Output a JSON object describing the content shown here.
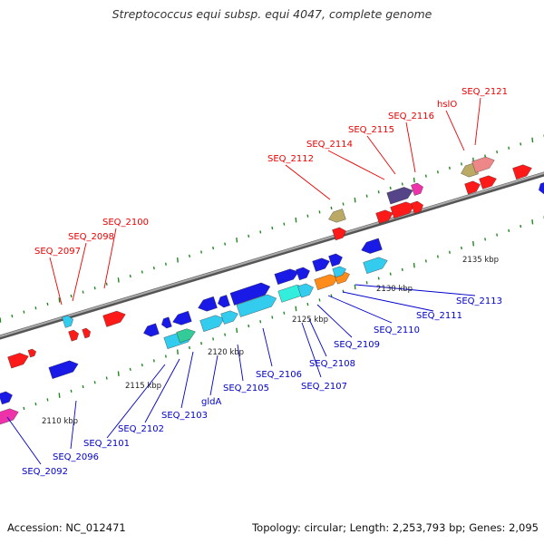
{
  "title": "Streptococcus equi subsp. equi 4047, complete genome",
  "footer": {
    "accession": "Accession: NC_012471",
    "summary": "Topology: circular; Length: 2,253,793 bp; Genes: 2,095"
  },
  "colors": {
    "backbone": "#888888",
    "tick": "#228822",
    "red_label": "#ee0000",
    "blue_label": "#0000cc",
    "gene_red": "#ff1a1a",
    "gene_blue": "#1a1ae6",
    "gene_cyan": "#33ccee",
    "gene_aqua": "#33eedd",
    "gene_green": "#33cc99",
    "gene_magenta": "#ee33aa",
    "gene_orange": "#ff8c1a",
    "gene_olive": "#bbaa66",
    "gene_salmon": "#ee8888",
    "gene_purple": "#554488"
  },
  "scale_labels": [
    "2110 kbp",
    "2115 kbp",
    "2120 kbp",
    "2125 kbp",
    "2130 kbp",
    "2135 kbp"
  ],
  "red_labels": [
    "SEQ_2097",
    "SEQ_2098",
    "SEQ_2100",
    "SEQ_2112",
    "SEQ_2114",
    "SEQ_2115",
    "SEQ_2116",
    "hslO",
    "SEQ_2121"
  ],
  "blue_labels": [
    "SEQ_2092",
    "SEQ_2096",
    "SEQ_2101",
    "SEQ_2102",
    "SEQ_2103",
    "gldA",
    "SEQ_2105",
    "SEQ_2106",
    "SEQ_2107",
    "SEQ_2108",
    "SEQ_2109",
    "SEQ_2110",
    "SEQ_2111",
    "SEQ_2113"
  ]
}
